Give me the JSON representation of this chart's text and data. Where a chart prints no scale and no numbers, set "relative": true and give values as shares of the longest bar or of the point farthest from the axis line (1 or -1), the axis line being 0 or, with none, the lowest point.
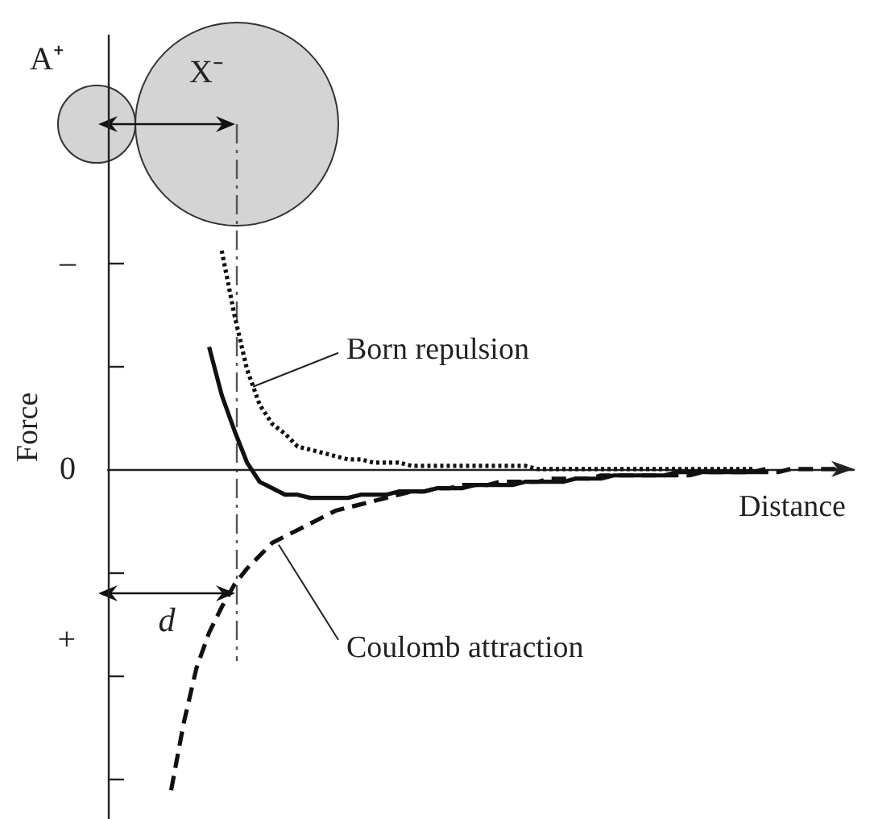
{
  "chart_data": {
    "type": "line",
    "xlabel": "Distance",
    "ylabel": "Force",
    "relative": true,
    "grid": false,
    "categories": [
      null,
      null,
      null,
      null,
      null,
      null,
      null,
      null,
      null,
      null,
      null,
      null,
      null,
      null,
      null,
      null,
      null,
      null,
      null,
      null,
      null,
      null,
      null,
      null,
      null,
      null,
      null,
      null,
      null,
      null,
      null,
      null,
      null,
      null,
      null,
      null,
      null,
      null,
      null,
      null,
      null,
      null,
      null,
      null,
      null,
      null,
      null,
      null,
      null,
      null,
      null,
      null,
      null,
      null,
      null,
      null,
      null,
      null,
      null,
      null
    ],
    "series": [
      {
        "color": "#111111",
        "line_style": "dotted",
        "values": [
          null,
          null,
          null,
          null,
          null,
          null,
          null,
          null,
          null,
          0.68,
          0.48,
          0.31,
          0.2,
          0.14,
          0.11,
          0.07,
          0.06,
          0.05,
          0.04,
          0.03,
          0.03,
          0.02,
          0.02,
          0.02,
          0.01,
          0.01,
          0.01,
          0.01,
          0.01,
          0.01,
          0.01,
          0.01,
          0.01,
          0.01,
          0,
          0,
          0,
          0,
          0,
          0,
          0,
          0,
          0,
          0,
          0,
          0,
          0,
          0,
          0,
          0,
          0,
          0,
          null,
          null,
          null,
          null,
          null,
          null,
          null,
          null
        ]
      },
      {
        "color": "#111111",
        "line_style": "solid",
        "values": [
          null,
          null,
          null,
          null,
          null,
          null,
          null,
          null,
          0.38,
          0.23,
          0.12,
          0.02,
          -0.04,
          -0.06,
          -0.08,
          -0.08,
          -0.09,
          -0.09,
          -0.09,
          -0.09,
          -0.08,
          -0.08,
          -0.08,
          -0.07,
          -0.07,
          -0.07,
          -0.06,
          -0.06,
          -0.06,
          -0.05,
          -0.05,
          -0.05,
          -0.05,
          -0.04,
          -0.04,
          -0.04,
          -0.04,
          -0.03,
          -0.03,
          -0.03,
          -0.02,
          -0.02,
          -0.02,
          -0.02,
          -0.02,
          -0.01,
          -0.01,
          -0.01,
          -0.01,
          -0.01,
          -0.01,
          -0.01,
          0,
          null,
          null,
          null,
          null,
          null,
          null,
          null
        ]
      },
      {
        "color": "#111111",
        "line_style": "dashed",
        "values": [
          null,
          null,
          null,
          null,
          null,
          -1,
          -0.79,
          -0.62,
          -0.51,
          -0.43,
          -0.36,
          -0.31,
          -0.27,
          -0.23,
          -0.21,
          -0.19,
          -0.17,
          -0.15,
          -0.13,
          -0.12,
          -0.11,
          -0.1,
          -0.09,
          -0.08,
          -0.07,
          -0.07,
          -0.06,
          -0.06,
          -0.05,
          -0.05,
          -0.05,
          -0.04,
          -0.04,
          -0.04,
          -0.04,
          -0.03,
          -0.03,
          -0.03,
          -0.03,
          -0.02,
          -0.02,
          -0.02,
          -0.02,
          -0.02,
          -0.02,
          -0.02,
          -0.02,
          -0.01,
          -0.01,
          -0.01,
          -0.01,
          -0.01,
          -0.01,
          -0.01,
          0,
          0,
          0,
          0,
          0,
          null
        ]
      }
    ],
    "annotations": [
      "A⁺",
      "X⁻",
      "d",
      "–",
      "0",
      "+",
      "Born repulsion",
      "Coulomb attraction"
    ]
  }
}
